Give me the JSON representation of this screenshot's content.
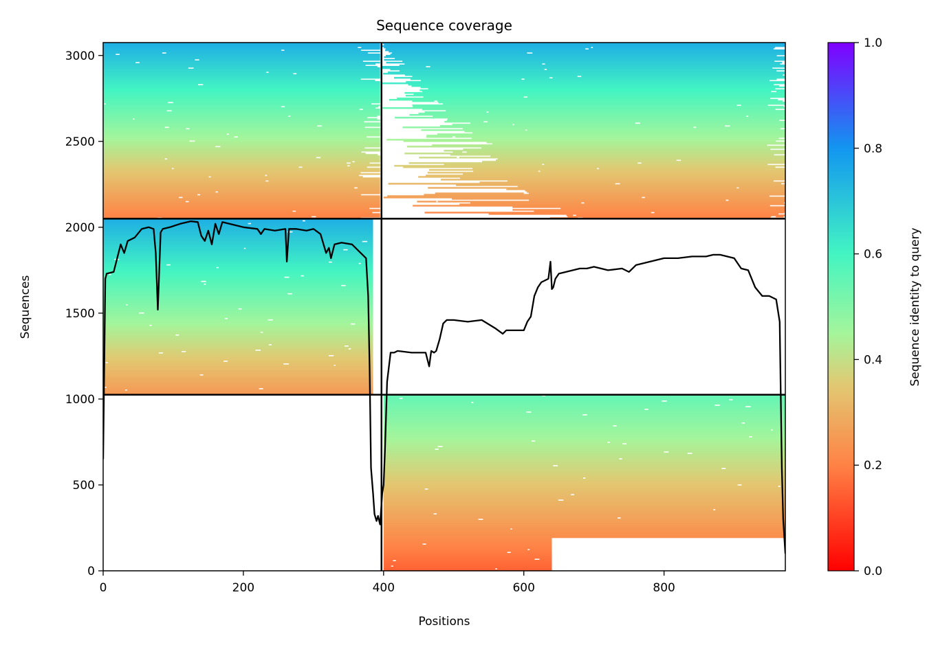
{
  "chart_data": {
    "type": "heatmap",
    "title": "Sequence coverage",
    "xlabel": "Positions",
    "ylabel": "Sequences",
    "xlim": [
      0,
      973
    ],
    "ylim": [
      0,
      3075
    ],
    "xticks": [
      0,
      200,
      400,
      600,
      800
    ],
    "yticks": [
      0,
      500,
      1000,
      1500,
      2000,
      2500,
      3000
    ],
    "grid": false,
    "colorbar": {
      "label": "Sequence identity to query",
      "range": [
        0.0,
        1.0
      ],
      "ticks": [
        "0.0",
        "0.2",
        "0.4",
        "0.6",
        "0.8",
        "1.0"
      ],
      "colormap": "rainbow_r"
    },
    "segment_boundaries": {
      "positions": [
        397
      ],
      "sequences": [
        1025,
        2050
      ]
    },
    "blocks": [
      {
        "x": [
          0,
          395
        ],
        "y": [
          2050,
          3075
        ],
        "coverage": "partial",
        "identity_low": 0.2,
        "identity_high": 0.75
      },
      {
        "x": [
          397,
          973
        ],
        "y": [
          2050,
          3075
        ],
        "coverage": "partial",
        "identity_low": 0.2,
        "identity_high": 0.75
      },
      {
        "x": [
          0,
          385
        ],
        "y": [
          1025,
          2050
        ],
        "coverage": "full",
        "identity_low": 0.25,
        "identity_high": 0.75
      },
      {
        "x": [
          400,
          973
        ],
        "y": [
          0,
          1025
        ],
        "coverage": "full",
        "identity_low": 0.15,
        "identity_high": 0.55
      }
    ],
    "coverage_line": {
      "color": "#000000",
      "x": [
        0,
        3,
        5,
        15,
        25,
        30,
        35,
        45,
        55,
        65,
        72,
        75,
        78,
        82,
        85,
        95,
        110,
        125,
        135,
        140,
        145,
        150,
        155,
        160,
        165,
        170,
        180,
        200,
        220,
        225,
        230,
        245,
        260,
        262,
        265,
        275,
        290,
        300,
        310,
        318,
        322,
        325,
        330,
        340,
        355,
        375,
        378,
        380,
        382,
        385,
        387,
        390,
        392,
        395,
        398,
        400,
        402,
        405,
        410,
        415,
        420,
        440,
        460,
        465,
        468,
        472,
        475,
        480,
        485,
        490,
        495,
        500,
        520,
        540,
        560,
        570,
        575,
        580,
        600,
        605,
        610,
        615,
        620,
        625,
        630,
        635,
        638,
        640,
        642,
        645,
        650,
        660,
        670,
        680,
        690,
        700,
        720,
        740,
        750,
        760,
        780,
        800,
        820,
        840,
        860,
        870,
        880,
        890,
        900,
        910,
        920,
        930,
        940,
        950,
        960,
        965,
        968,
        970,
        973
      ],
      "y": [
        650,
        1700,
        1730,
        1740,
        1900,
        1850,
        1920,
        1940,
        1990,
        2000,
        1990,
        1850,
        1520,
        1970,
        1990,
        2000,
        2020,
        2035,
        2030,
        1950,
        1920,
        1980,
        1900,
        2020,
        1960,
        2030,
        2020,
        2000,
        1990,
        1960,
        1990,
        1980,
        1990,
        1800,
        1990,
        1990,
        1980,
        1990,
        1960,
        1850,
        1880,
        1820,
        1900,
        1910,
        1900,
        1820,
        1600,
        1200,
        600,
        450,
        330,
        290,
        320,
        270,
        450,
        500,
        700,
        1100,
        1270,
        1270,
        1280,
        1270,
        1270,
        1190,
        1280,
        1270,
        1280,
        1350,
        1440,
        1460,
        1460,
        1460,
        1450,
        1460,
        1410,
        1380,
        1400,
        1400,
        1400,
        1450,
        1480,
        1600,
        1650,
        1680,
        1690,
        1700,
        1800,
        1640,
        1650,
        1700,
        1730,
        1740,
        1750,
        1760,
        1760,
        1770,
        1750,
        1760,
        1740,
        1780,
        1800,
        1820,
        1820,
        1830,
        1830,
        1840,
        1840,
        1830,
        1820,
        1760,
        1750,
        1650,
        1600,
        1600,
        1580,
        1450,
        600,
        300,
        100
      ]
    }
  }
}
